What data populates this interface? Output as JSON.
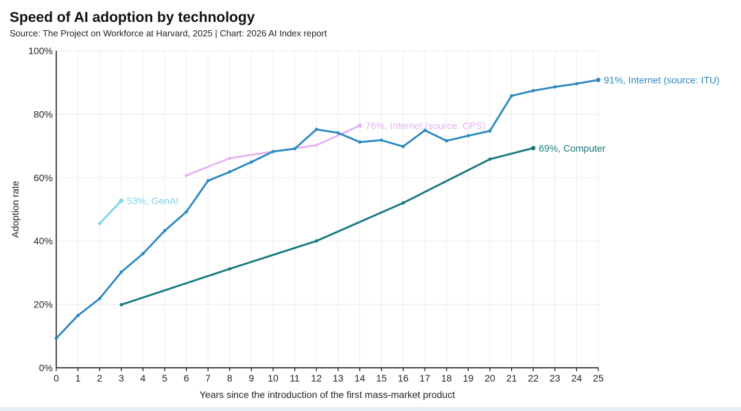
{
  "header": {
    "title": "Speed of AI adoption by technology",
    "subtitle": "Source: The Project on Workforce at Harvard, 2025 | Chart: 2026 AI Index report"
  },
  "chart_data": {
    "type": "line",
    "title": "Speed of AI adoption by technology",
    "subtitle": "Source: The Project on Workforce at Harvard, 2025 | Chart: 2026 AI Index report",
    "xlabel": "Years since the introduction of the first mass-market product",
    "ylabel": "Adoption rate",
    "xlim": [
      0,
      25
    ],
    "ylim": [
      0,
      100
    ],
    "x_ticks": [
      0,
      1,
      2,
      3,
      4,
      5,
      6,
      7,
      8,
      9,
      10,
      11,
      12,
      13,
      14,
      15,
      16,
      17,
      18,
      19,
      20,
      21,
      22,
      23,
      24,
      25
    ],
    "y_ticks": [
      0,
      20,
      40,
      60,
      80,
      100
    ],
    "y_tick_labels": [
      "0%",
      "20%",
      "40%",
      "60%",
      "80%",
      "100%"
    ],
    "grid": true,
    "series": [
      {
        "key": "genai",
        "color": "#7fd3ea",
        "end_label": "53%, GenAI",
        "points": [
          [
            2,
            45.5
          ],
          [
            3,
            52.7
          ]
        ]
      },
      {
        "key": "internet-cps",
        "color": "#e3b3f3",
        "end_label": "76%, Internet (source: CPS)",
        "points": [
          [
            6,
            60.7
          ],
          [
            8,
            66.1
          ],
          [
            10,
            68.2
          ],
          [
            12,
            70.2
          ],
          [
            14,
            76.4
          ]
        ]
      },
      {
        "key": "internet-itu",
        "color": "#2c89c0",
        "end_label": "91%, Internet (source: ITU)",
        "points": [
          [
            0,
            9.3
          ],
          [
            1,
            16.5
          ],
          [
            2,
            21.8
          ],
          [
            3,
            30.2
          ],
          [
            4,
            36.0
          ],
          [
            5,
            43.2
          ],
          [
            6,
            49.2
          ],
          [
            7,
            59.0
          ],
          [
            8,
            61.8
          ],
          [
            9,
            64.9
          ],
          [
            10,
            68.2
          ],
          [
            11,
            69.1
          ],
          [
            12,
            75.2
          ],
          [
            13,
            74.1
          ],
          [
            14,
            71.2
          ],
          [
            15,
            71.8
          ],
          [
            16,
            69.8
          ],
          [
            17,
            74.9
          ],
          [
            18,
            71.6
          ],
          [
            19,
            73.2
          ],
          [
            20,
            74.7
          ],
          [
            21,
            85.8
          ],
          [
            22,
            87.4
          ],
          [
            23,
            88.6
          ],
          [
            24,
            89.6
          ],
          [
            25,
            90.8
          ]
        ]
      },
      {
        "key": "computer",
        "color": "#177a7f",
        "end_label": "69%, Computer",
        "points": [
          [
            3,
            19.9
          ],
          [
            8,
            31.2
          ],
          [
            12,
            40.0
          ],
          [
            16,
            52.0
          ],
          [
            20,
            65.8
          ],
          [
            22,
            69.3
          ]
        ]
      }
    ]
  }
}
